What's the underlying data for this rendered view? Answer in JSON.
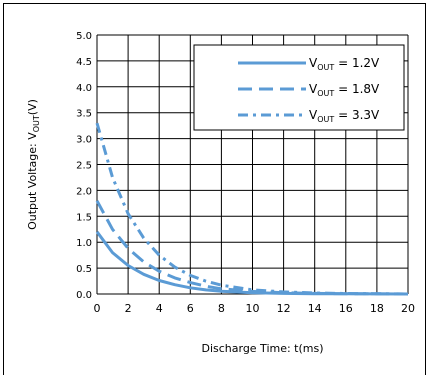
{
  "chart_data": {
    "type": "line",
    "xlabel": "Discharge Time: t(ms)",
    "ylabel": "Output Voltage: V",
    "ylabel_sub": "OUT",
    "ylabel_unit": "(V)",
    "xlim": [
      0,
      20
    ],
    "ylim": [
      0,
      5.0
    ],
    "x_ticks": [
      "0",
      "2",
      "4",
      "6",
      "8",
      "10",
      "12",
      "14",
      "16",
      "18",
      "20"
    ],
    "y_ticks": [
      "0.0",
      "0.5",
      "1.0",
      "1.5",
      "2.0",
      "2.5",
      "3.0",
      "3.5",
      "4.0",
      "4.5",
      "5.0"
    ],
    "grid": true,
    "legend_position": "top-right",
    "series": [
      {
        "name": "V",
        "name_sub": "OUT",
        "name_rest": " = 1.2V",
        "style": "solid",
        "x": [
          0,
          1,
          2,
          3,
          4,
          5,
          6,
          7,
          8,
          10,
          12,
          14,
          16,
          18,
          20
        ],
        "y": [
          1.2,
          0.8,
          0.55,
          0.38,
          0.26,
          0.18,
          0.12,
          0.08,
          0.055,
          0.025,
          0.012,
          0.006,
          0.003,
          0.0015,
          0.0
        ]
      },
      {
        "name": "V",
        "name_sub": "OUT",
        "name_rest": " = 1.8V",
        "style": "dash",
        "x": [
          0,
          1,
          2,
          3,
          4,
          5,
          6,
          7,
          8,
          10,
          12,
          14,
          16,
          18,
          20
        ],
        "y": [
          1.8,
          1.25,
          0.88,
          0.62,
          0.44,
          0.31,
          0.22,
          0.15,
          0.1,
          0.05,
          0.025,
          0.012,
          0.006,
          0.003,
          0.0
        ]
      },
      {
        "name": "V",
        "name_sub": "OUT",
        "name_rest": " = 3.3V",
        "style": "dashdot",
        "x": [
          0,
          1,
          2,
          3,
          4,
          5,
          6,
          7,
          8,
          10,
          12,
          14,
          16,
          18,
          20
        ],
        "y": [
          3.3,
          2.25,
          1.55,
          1.08,
          0.75,
          0.52,
          0.36,
          0.25,
          0.17,
          0.08,
          0.04,
          0.02,
          0.01,
          0.005,
          0.0
        ]
      }
    ],
    "colors": {
      "series": "#5b9bd5",
      "grid": "#000000"
    }
  }
}
